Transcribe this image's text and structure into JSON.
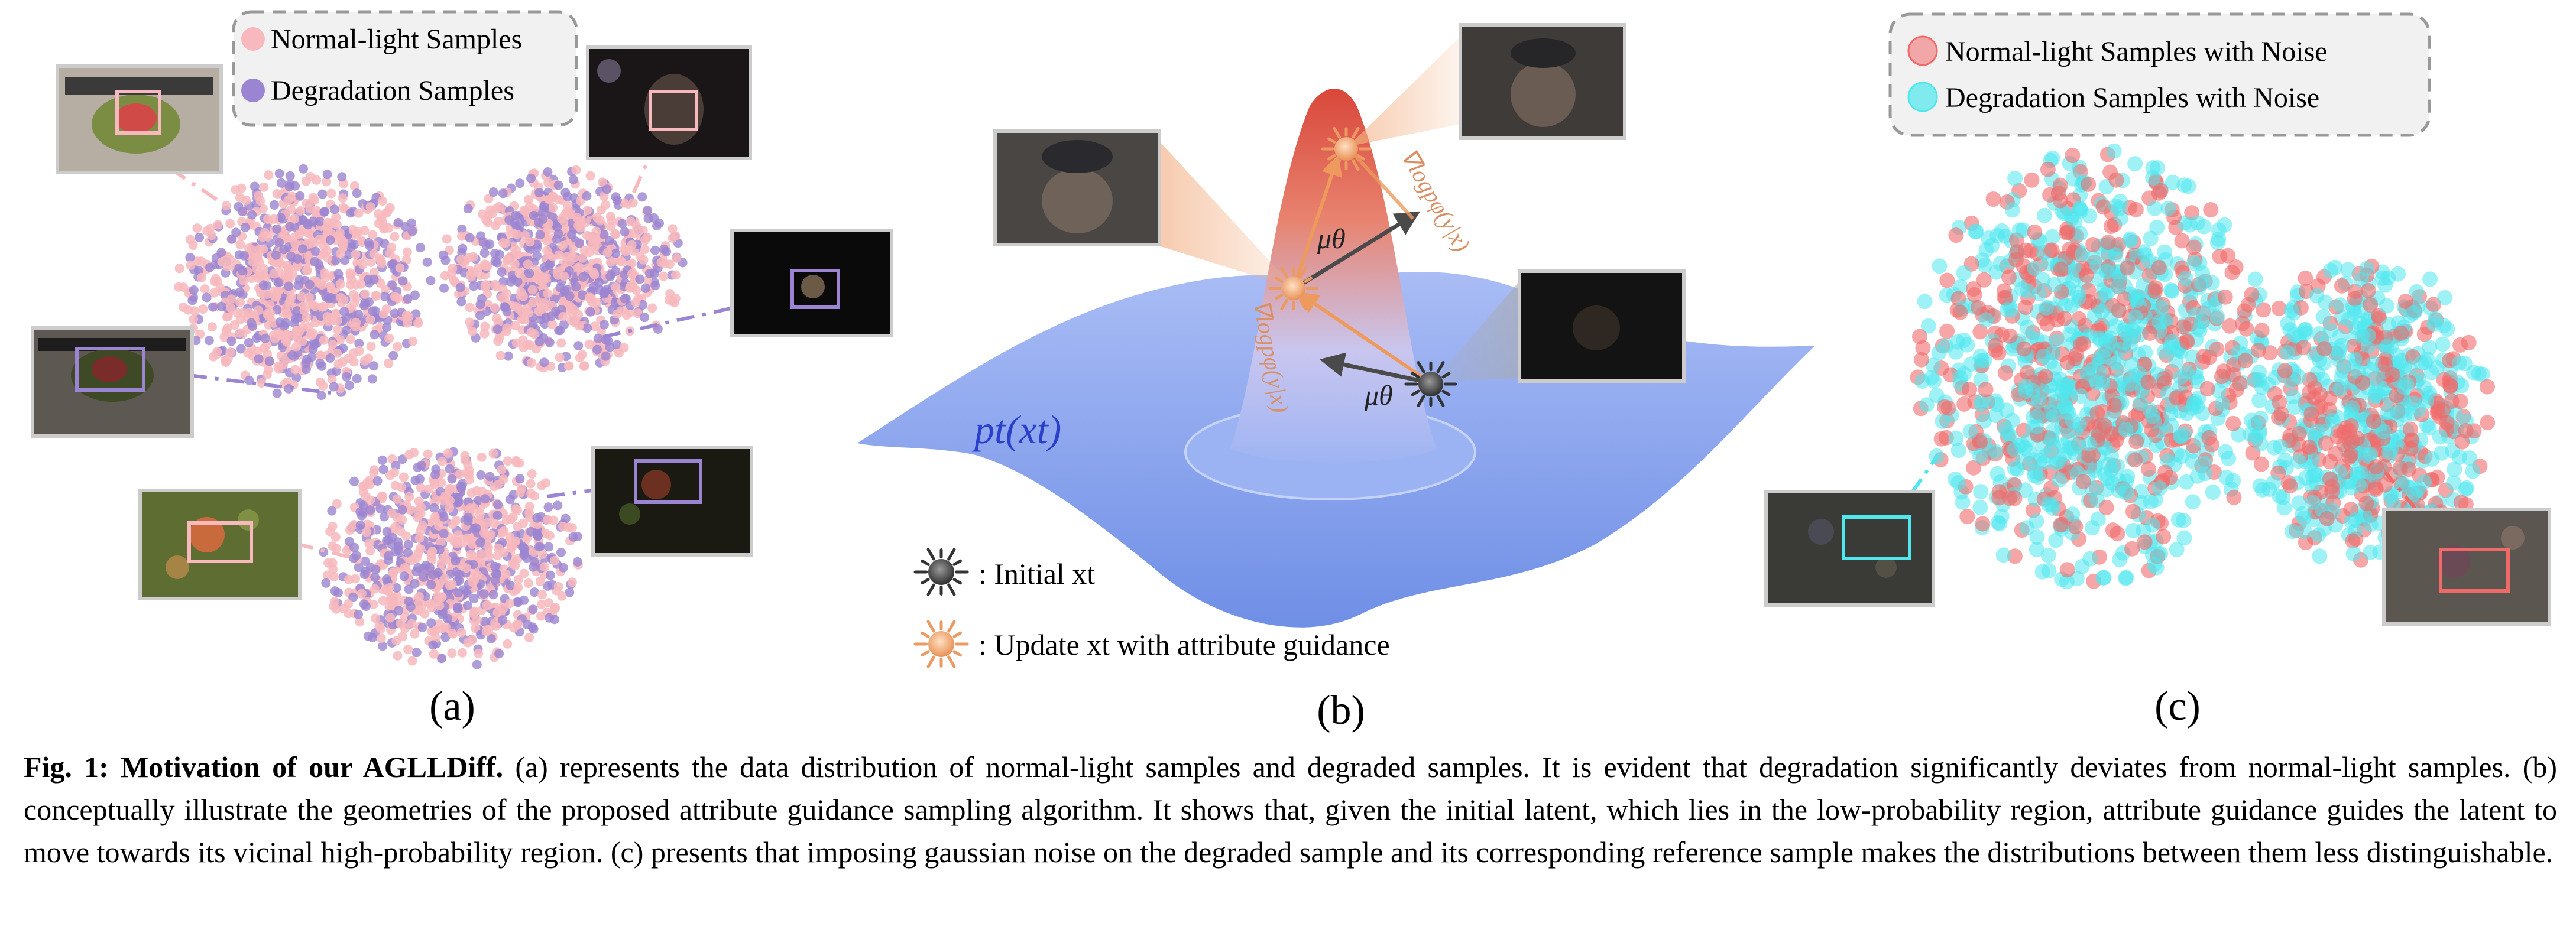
{
  "panel_a": {
    "legend": [
      "Normal-light Samples",
      "Degradation Samples"
    ],
    "label": "(a)"
  },
  "panel_b": {
    "density_label": "pt(xt)",
    "mu_label": "μθ",
    "grad_label": "∇logpφ(y|x)",
    "legend_initial": ": Initial xt",
    "legend_update": ": Update xt with attribute guidance",
    "label": "(b)"
  },
  "panel_c": {
    "legend": [
      "Normal-light Samples with Noise",
      "Degradation Samples with Noise"
    ],
    "label": "(c)"
  },
  "colors": {
    "normal": "#f7b9bd",
    "degraded": "#9b84d1",
    "normal_noise": "#f06a6a",
    "degraded_noise": "#4fe8ee",
    "surface": "#8ea7f0",
    "peak": "#d9473a"
  },
  "caption": {
    "fig_num": "Fig. 1:",
    "title": "Motivation of our AGLLDiff.",
    "body": " (a) represents the data distribution of normal-light samples and degraded samples. It is evident that degradation significantly deviates from normal-light samples. (b) conceptually illustrate the geometries of the proposed attribute guidance sampling algorithm. It shows that, given the initial latent, which lies in the low-probability region, attribute guidance guides the latent to move towards its vicinal high-probability region. (c) presents that imposing gaussian noise on the degraded sample and its corresponding reference sample makes the distributions between them less distinguishable."
  }
}
